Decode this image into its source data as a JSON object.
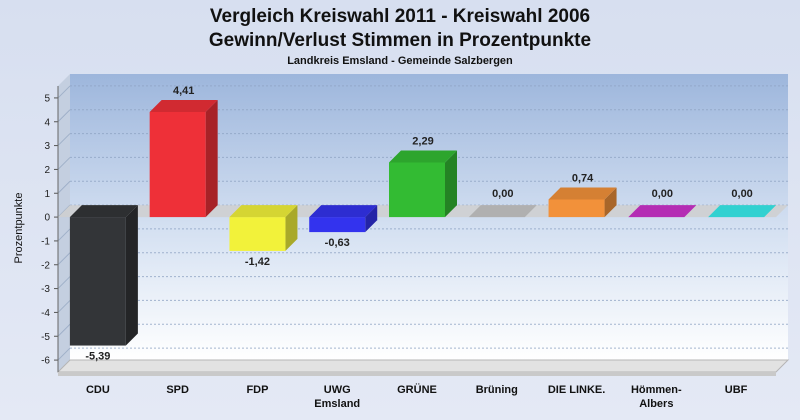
{
  "chart_data": {
    "type": "bar",
    "title_line1": "Vergleich Kreiswahl 2011 - Kreiswahl 2006",
    "title_line2": "Gewinn/Verlust Stimmen in Prozentpunkte",
    "subtitle": "Landkreis Emsland - Gemeinde Salzbergen",
    "ylabel": "Prozentpunkte",
    "ylim": [
      -6.5,
      5.5
    ],
    "yticks": [
      5,
      4,
      3,
      2,
      1,
      0,
      -1,
      -2,
      -3,
      -4,
      -5,
      -6
    ],
    "grid": true,
    "categories": [
      {
        "lines": [
          "CDU"
        ]
      },
      {
        "lines": [
          "SPD"
        ]
      },
      {
        "lines": [
          "FDP"
        ]
      },
      {
        "lines": [
          "UWG",
          "Emsland"
        ]
      },
      {
        "lines": [
          "GRÜNE"
        ]
      },
      {
        "lines": [
          "Brüning"
        ]
      },
      {
        "lines": [
          "DIE LINKE."
        ]
      },
      {
        "lines": [
          "Hömmen-",
          "Albers"
        ]
      },
      {
        "lines": [
          "UBF"
        ]
      }
    ],
    "values": [
      -5.39,
      4.41,
      -1.42,
      -0.63,
      2.29,
      0.0,
      0.74,
      0.0,
      0.0
    ],
    "value_labels": [
      "-5,39",
      "4,41",
      "-1,42",
      "-0,63",
      "2,29",
      "0,00",
      "0,74",
      "0,00",
      "0,00"
    ],
    "colors": [
      "#333538",
      "#ee3038",
      "#f2f23a",
      "#3333ee",
      "#33bb33",
      "#c8c8c8",
      "#f2913a",
      "#cc33cc",
      "#38eeee"
    ]
  }
}
